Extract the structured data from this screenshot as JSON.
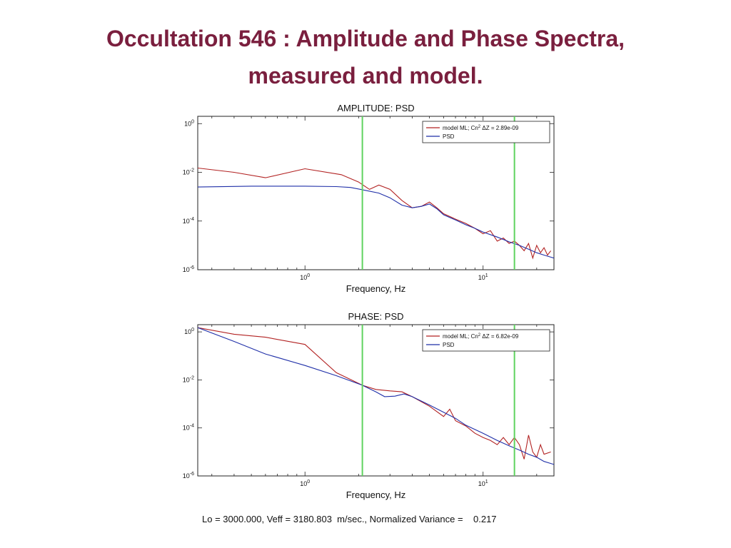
{
  "slide": {
    "title_line1": "Occultation 546 : Amplitude and Phase Spectra,",
    "title_line2": "measured and model."
  },
  "footer": {
    "text": "Lo = 3000.000, Veff = 3180.803  m/sec., Normalized Variance =    0.217"
  },
  "colors": {
    "model": "#b22222",
    "psd": "#1f2fa8",
    "vline": "#5fd35f",
    "title": "#7a1f3e"
  },
  "chart_data": [
    {
      "type": "line",
      "title": "AMPLITUDE: PSD",
      "xlabel": "Frequency, Hz",
      "ylabel": "",
      "xscale": "log",
      "yscale": "log",
      "xlim": [
        0.25,
        25
      ],
      "ylim": [
        1e-06,
        2
      ],
      "x_ticks": [
        "10^0",
        "10^1"
      ],
      "y_ticks": [
        "10^0",
        "10^-2",
        "10^-4",
        "10^-6"
      ],
      "legend": {
        "placement": "top-right",
        "entries": [
          "model ML; Cn^2 ΔZ =  2.89e-09",
          "PSD"
        ]
      },
      "vlines": [
        2.1,
        15
      ],
      "series": [
        {
          "name": "model ML; Cn^2 ΔZ =  2.89e-09",
          "color": "#b22222",
          "points": [
            [
              0.25,
              0.015
            ],
            [
              0.4,
              0.01
            ],
            [
              0.6,
              0.006
            ],
            [
              1.0,
              0.014
            ],
            [
              1.6,
              0.008
            ],
            [
              2.0,
              0.004
            ],
            [
              2.3,
              0.002
            ],
            [
              2.6,
              0.003
            ],
            [
              3.0,
              0.002
            ],
            [
              3.5,
              0.0007
            ],
            [
              4.0,
              0.00035
            ],
            [
              4.5,
              0.0004
            ],
            [
              5.0,
              0.0006
            ],
            [
              5.5,
              0.00035
            ],
            [
              6.0,
              0.0002
            ],
            [
              7.0,
              0.00012
            ],
            [
              8.0,
              8e-05
            ],
            [
              9.0,
              5e-05
            ],
            [
              10.0,
              3e-05
            ],
            [
              11.0,
              4e-05
            ],
            [
              12.0,
              1.5e-05
            ],
            [
              13.0,
              2e-05
            ],
            [
              14.0,
              1.2e-05
            ],
            [
              15.0,
              1.5e-05
            ],
            [
              16.0,
              1e-05
            ],
            [
              17.0,
              6e-06
            ],
            [
              18.0,
              1.2e-05
            ],
            [
              19.0,
              3e-06
            ],
            [
              20.0,
              1e-05
            ],
            [
              21.0,
              5e-06
            ],
            [
              22.0,
              8e-06
            ],
            [
              23.0,
              4e-06
            ],
            [
              24.0,
              6e-06
            ]
          ]
        },
        {
          "name": "PSD",
          "color": "#1f2fa8",
          "points": [
            [
              0.25,
              0.0025
            ],
            [
              0.5,
              0.0027
            ],
            [
              1.0,
              0.0027
            ],
            [
              1.5,
              0.0026
            ],
            [
              1.8,
              0.0024
            ],
            [
              2.2,
              0.0018
            ],
            [
              2.6,
              0.0014
            ],
            [
              3.0,
              0.0009
            ],
            [
              3.5,
              0.00045
            ],
            [
              4.0,
              0.00035
            ],
            [
              4.5,
              0.0004
            ],
            [
              5.0,
              0.0005
            ],
            [
              5.5,
              0.00032
            ],
            [
              6.0,
              0.00018
            ],
            [
              7.0,
              0.00011
            ],
            [
              8.0,
              7e-05
            ],
            [
              9.0,
              5e-05
            ],
            [
              10.0,
              3.5e-05
            ],
            [
              12.0,
              2.2e-05
            ],
            [
              14.0,
              1.4e-05
            ],
            [
              16.0,
              1e-05
            ],
            [
              18.0,
              7e-06
            ],
            [
              20.0,
              5e-06
            ],
            [
              22.0,
              4e-06
            ],
            [
              25.0,
              3e-06
            ]
          ]
        }
      ]
    },
    {
      "type": "line",
      "title": "PHASE:  PSD",
      "xlabel": "Frequency, Hz",
      "ylabel": "",
      "xscale": "log",
      "yscale": "log",
      "xlim": [
        0.25,
        25
      ],
      "ylim": [
        1e-06,
        2
      ],
      "x_ticks": [
        "10^0",
        "10^1"
      ],
      "y_ticks": [
        "10^0",
        "10^-2",
        "10^-4",
        "10^-6"
      ],
      "legend": {
        "placement": "top-right",
        "entries": [
          "model ML; Cn^2 ΔZ =  6.82e-09",
          "PSD"
        ]
      },
      "vlines": [
        2.1,
        15
      ],
      "series": [
        {
          "name": "model ML; Cn^2 ΔZ =  6.82e-09",
          "color": "#b22222",
          "points": [
            [
              0.25,
              1.5
            ],
            [
              0.4,
              0.8
            ],
            [
              0.6,
              0.6
            ],
            [
              1.0,
              0.3
            ],
            [
              1.5,
              0.02
            ],
            [
              2.1,
              0.006
            ],
            [
              2.5,
              0.004
            ],
            [
              3.0,
              0.0035
            ],
            [
              3.5,
              0.0032
            ],
            [
              4.0,
              0.002
            ],
            [
              5.0,
              0.0008
            ],
            [
              6.0,
              0.0003
            ],
            [
              6.5,
              0.0006
            ],
            [
              7.0,
              0.0002
            ],
            [
              8.0,
              0.00012
            ],
            [
              9.0,
              6e-05
            ],
            [
              10.0,
              4e-05
            ],
            [
              11.0,
              3e-05
            ],
            [
              12.0,
              2e-05
            ],
            [
              13.0,
              4e-05
            ],
            [
              14.0,
              2e-05
            ],
            [
              15.0,
              4e-05
            ],
            [
              16.0,
              2e-05
            ],
            [
              17.0,
              5e-06
            ],
            [
              18.0,
              5e-05
            ],
            [
              19.0,
              1e-05
            ],
            [
              20.0,
              6e-06
            ],
            [
              21.0,
              2e-05
            ],
            [
              22.0,
              8e-06
            ],
            [
              24.0,
              1e-05
            ]
          ]
        },
        {
          "name": "PSD",
          "color": "#1f2fa8",
          "points": [
            [
              0.25,
              1.5
            ],
            [
              0.4,
              0.4
            ],
            [
              0.6,
              0.12
            ],
            [
              1.0,
              0.04
            ],
            [
              1.5,
              0.015
            ],
            [
              2.1,
              0.006
            ],
            [
              2.5,
              0.0032
            ],
            [
              2.8,
              0.002
            ],
            [
              3.2,
              0.0021
            ],
            [
              3.6,
              0.0026
            ],
            [
              4.0,
              0.002
            ],
            [
              5.0,
              0.0009
            ],
            [
              6.0,
              0.00045
            ],
            [
              7.0,
              0.00025
            ],
            [
              8.0,
              0.00013
            ],
            [
              10.0,
              6e-05
            ],
            [
              12.0,
              3e-05
            ],
            [
              14.0,
              1.8e-05
            ],
            [
              16.0,
              1.2e-05
            ],
            [
              18.0,
              8e-06
            ],
            [
              20.0,
              6e-06
            ],
            [
              22.0,
              4e-06
            ],
            [
              25.0,
              3e-06
            ]
          ]
        }
      ]
    }
  ]
}
